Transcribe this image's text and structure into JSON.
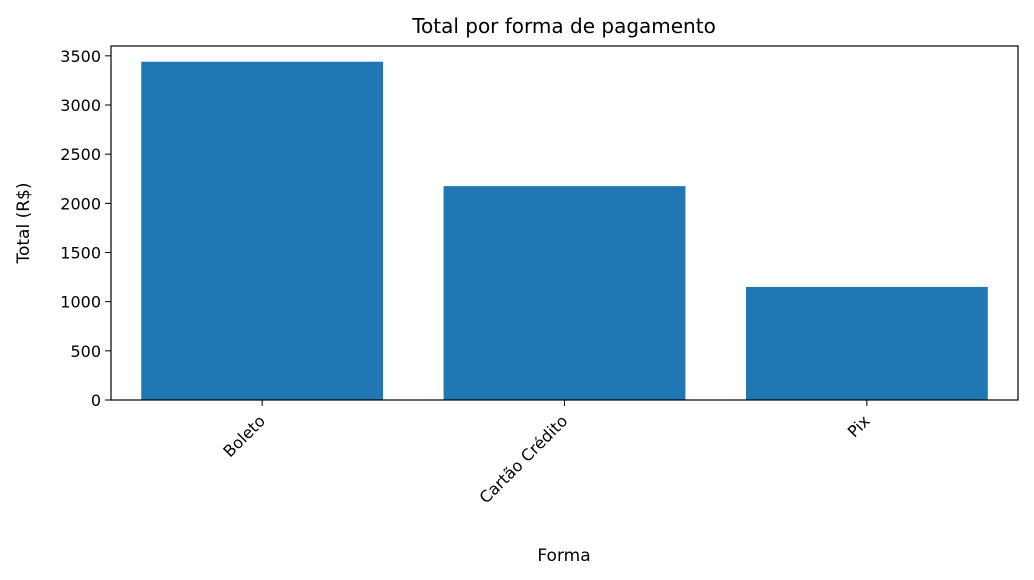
{
  "chart_data": {
    "type": "bar",
    "title": "Total por forma de pagamento",
    "xlabel": "Forma",
    "ylabel": "Total (R$)",
    "categories": [
      "Boleto",
      "Cartão Crédito",
      "Pix"
    ],
    "values": [
      3440,
      2175,
      1150
    ],
    "ylim": [
      0,
      3600
    ],
    "yticks": [
      0,
      500,
      1000,
      1500,
      2000,
      2500,
      3000,
      3500
    ],
    "bar_color": "#1f77b4",
    "grid": false,
    "legend": "none",
    "xtick_rotation": -45
  }
}
